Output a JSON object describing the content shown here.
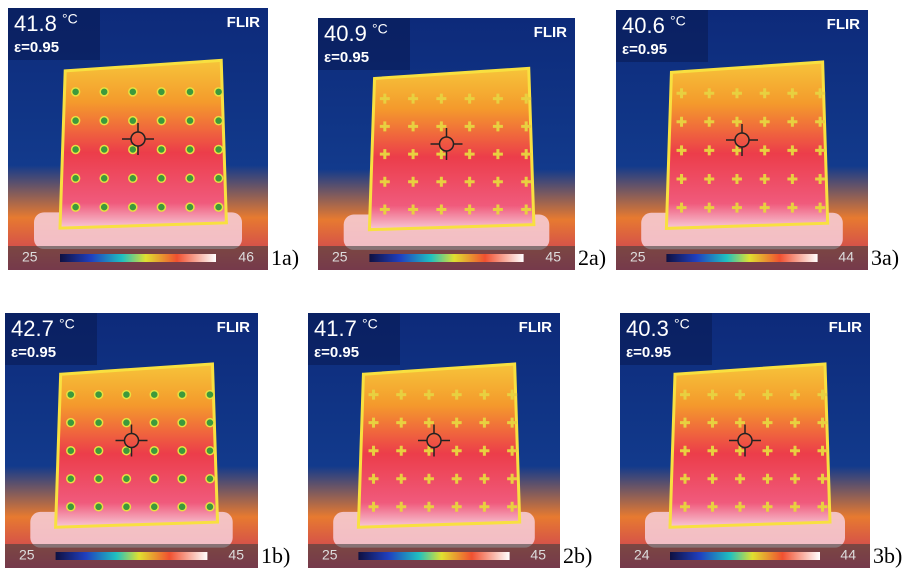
{
  "panels": [
    {
      "temperature": 41.8,
      "unit": "°C",
      "emissivity": "ε=0.95",
      "brand": "FLIR",
      "scale_min": 25,
      "scale_max": 46,
      "label": "1a)"
    },
    {
      "temperature": 40.9,
      "unit": "°C",
      "emissivity": "ε=0.95",
      "brand": "FLIR",
      "scale_min": 25,
      "scale_max": 45,
      "label": "2a)"
    },
    {
      "temperature": 40.6,
      "unit": "°C",
      "emissivity": "ε=0.95",
      "brand": "FLIR",
      "scale_min": 25,
      "scale_max": 44,
      "label": "3a)"
    },
    {
      "temperature": 42.7,
      "unit": "°C",
      "emissivity": "ε=0.95",
      "brand": "FLIR",
      "scale_min": 25,
      "scale_max": 45,
      "label": "1b)"
    },
    {
      "temperature": 41.7,
      "unit": "°C",
      "emissivity": "ε=0.95",
      "brand": "FLIR",
      "scale_min": 25,
      "scale_max": 45,
      "label": "2b)"
    },
    {
      "temperature": 40.3,
      "unit": "°C",
      "emissivity": "ε=0.95",
      "brand": "FLIR",
      "scale_min": 24,
      "scale_max": 44,
      "label": "3b)"
    }
  ]
}
